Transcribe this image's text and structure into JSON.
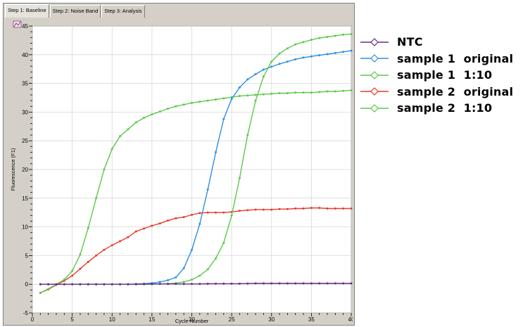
{
  "tabs": [
    {
      "label": "Step 1: Baseline",
      "active": true
    },
    {
      "label": "Step 2: Noise Band",
      "active": false
    },
    {
      "label": "Step 3: Analysis",
      "active": false
    }
  ],
  "icons": {
    "corner": "chart-options-icon"
  },
  "chart_data": {
    "type": "line",
    "xlabel": "Cycle Number",
    "ylabel": "Fluorescence (F1)",
    "xlim": [
      0,
      40
    ],
    "ylim": [
      -5,
      45
    ],
    "xticks": [
      0,
      5,
      10,
      15,
      20,
      25,
      30,
      35,
      40
    ],
    "yticks": [
      -5,
      0,
      5,
      10,
      15,
      20,
      25,
      30,
      35,
      40,
      45
    ],
    "grid": true,
    "legend_position": "right, outside plot",
    "series": [
      {
        "name": "NTC",
        "color": "#6a2a8a",
        "x": [
          1,
          2,
          3,
          4,
          5,
          6,
          7,
          8,
          9,
          10,
          11,
          12,
          13,
          14,
          15,
          16,
          17,
          18,
          19,
          20,
          21,
          22,
          23,
          24,
          25,
          26,
          27,
          28,
          29,
          30,
          31,
          32,
          33,
          34,
          35,
          36,
          37,
          38,
          39,
          40
        ],
        "y": [
          0,
          0,
          0,
          0,
          0,
          0,
          0,
          0,
          0,
          0,
          0,
          0,
          0,
          0.02,
          0.05,
          0.05,
          0.05,
          0.05,
          0.05,
          0.05,
          0.05,
          0.08,
          0.1,
          0.1,
          0.1,
          0.1,
          0.12,
          0.15,
          0.15,
          0.15,
          0.15,
          0.15,
          0.15,
          0.15,
          0.15,
          0.15,
          0.15,
          0.15,
          0.15,
          0.15
        ]
      },
      {
        "name": "sample 1  original",
        "color": "#2f8fe0",
        "x": [
          1,
          2,
          3,
          4,
          5,
          6,
          7,
          8,
          9,
          10,
          11,
          12,
          13,
          14,
          15,
          16,
          17,
          18,
          19,
          20,
          21,
          22,
          23,
          24,
          25,
          26,
          27,
          28,
          29,
          30,
          31,
          32,
          33,
          34,
          35,
          36,
          37,
          38,
          39,
          40
        ],
        "y": [
          0,
          0,
          0,
          0,
          0,
          0,
          0,
          0,
          0,
          0,
          0,
          0,
          0.05,
          0.1,
          0.2,
          0.4,
          0.7,
          1.2,
          2.8,
          6,
          10.5,
          16.5,
          23,
          28.8,
          32.3,
          34.3,
          35.7,
          36.6,
          37.4,
          37.9,
          38.4,
          38.8,
          39.2,
          39.5,
          39.7,
          39.9,
          40.1,
          40.3,
          40.5,
          40.7
        ]
      },
      {
        "name": "sample 1  1:10",
        "color": "#5cc84a",
        "x": [
          1,
          2,
          3,
          4,
          5,
          6,
          7,
          8,
          9,
          10,
          11,
          12,
          13,
          14,
          15,
          16,
          17,
          18,
          19,
          20,
          21,
          22,
          23,
          24,
          25,
          26,
          27,
          28,
          29,
          30,
          31,
          32,
          33,
          34,
          35,
          36,
          37,
          38,
          39,
          40
        ],
        "y": [
          0,
          0,
          0,
          0,
          0,
          0,
          0,
          0,
          0,
          0,
          0,
          0,
          0,
          0,
          0,
          0.05,
          0.1,
          0.2,
          0.4,
          0.8,
          1.5,
          2.6,
          4.5,
          7.2,
          12,
          18.5,
          26,
          32,
          36.2,
          38.8,
          40.2,
          41.1,
          41.8,
          42.2,
          42.6,
          42.9,
          43.1,
          43.3,
          43.5,
          43.6
        ]
      },
      {
        "name": "sample 2  original",
        "color": "#e83a2a",
        "x": [
          1,
          2,
          3,
          4,
          5,
          6,
          7,
          8,
          9,
          10,
          11,
          12,
          13,
          14,
          15,
          16,
          17,
          18,
          19,
          20,
          21,
          22,
          23,
          24,
          25,
          26,
          27,
          28,
          29,
          30,
          31,
          32,
          33,
          34,
          35,
          36,
          37,
          38,
          39,
          40
        ],
        "y": [
          -1.5,
          -0.9,
          -0.1,
          0.6,
          1.5,
          2.7,
          3.9,
          5,
          6,
          6.8,
          7.5,
          8.2,
          9.2,
          9.7,
          10.2,
          10.6,
          11.1,
          11.5,
          11.7,
          12.1,
          12.4,
          12.5,
          12.5,
          12.5,
          12.6,
          12.8,
          12.9,
          13,
          13,
          13,
          13.1,
          13.1,
          13.2,
          13.2,
          13.3,
          13.3,
          13.2,
          13.2,
          13.2,
          13.2
        ]
      },
      {
        "name": "sample 2  1:10",
        "color": "#5cc84a",
        "x": [
          1,
          2,
          3,
          4,
          5,
          6,
          7,
          8,
          9,
          10,
          11,
          12,
          13,
          14,
          15,
          16,
          17,
          18,
          19,
          20,
          21,
          22,
          23,
          24,
          25,
          26,
          27,
          28,
          29,
          30,
          31,
          32,
          33,
          34,
          35,
          36,
          37,
          38,
          39,
          40
        ],
        "y": [
          -1.5,
          -0.8,
          0,
          0.8,
          2.3,
          5.2,
          9.8,
          15,
          20,
          23.6,
          25.8,
          27,
          28.2,
          29,
          29.6,
          30.1,
          30.6,
          31,
          31.3,
          31.6,
          31.8,
          32,
          32.2,
          32.4,
          32.6,
          32.8,
          32.9,
          33,
          33.1,
          33.2,
          33.3,
          33.3,
          33.4,
          33.4,
          33.4,
          33.5,
          33.6,
          33.6,
          33.7,
          33.8
        ]
      }
    ]
  }
}
